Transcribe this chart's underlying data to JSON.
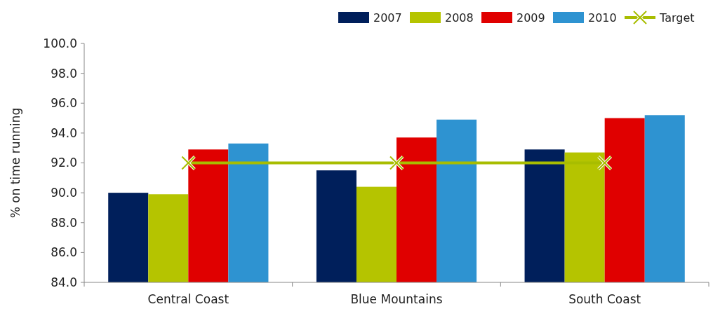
{
  "chart_data": {
    "type": "bar",
    "ylabel": "% on time running",
    "categories": [
      "Central Coast",
      "Blue Mountains",
      "South Coast"
    ],
    "series": [
      {
        "name": "2007",
        "color": "#001f5b",
        "values": [
          90.0,
          91.5,
          92.9
        ]
      },
      {
        "name": "2008",
        "color": "#b5c400",
        "values": [
          89.9,
          90.4,
          92.7
        ]
      },
      {
        "name": "2009",
        "color": "#e00000",
        "values": [
          92.9,
          93.7,
          95.0
        ]
      },
      {
        "name": "2010",
        "color": "#2e93d1",
        "values": [
          93.3,
          94.9,
          95.2
        ]
      },
      {
        "name": "Target",
        "type": "line",
        "color": "#a8bd00",
        "marker": "cross",
        "values": [
          92,
          92,
          92
        ]
      }
    ],
    "ylim": [
      84,
      100
    ],
    "yticks": [
      {
        "value": 84,
        "label": "84.0"
      },
      {
        "value": 86,
        "label": "86.0"
      },
      {
        "value": 88,
        "label": "88.0"
      },
      {
        "value": 90,
        "label": "90.0"
      },
      {
        "value": 92,
        "label": "92.0"
      },
      {
        "value": 94,
        "label": "94.0"
      },
      {
        "value": 96,
        "label": "96.0"
      },
      {
        "value": 98,
        "label": "98.0"
      },
      {
        "value": 100,
        "label": "100.0"
      }
    ],
    "grid": false,
    "legend": "top right"
  }
}
